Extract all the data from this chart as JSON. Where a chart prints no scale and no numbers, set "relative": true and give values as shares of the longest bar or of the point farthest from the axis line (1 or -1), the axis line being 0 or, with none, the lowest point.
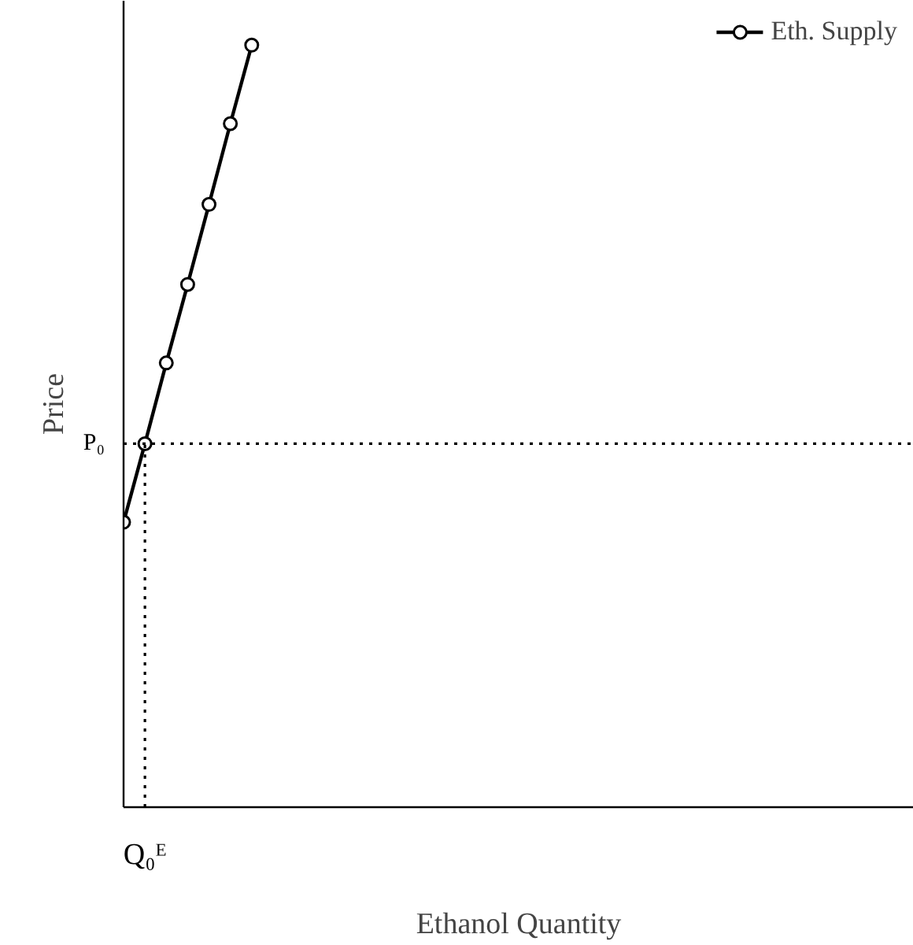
{
  "chart_data": {
    "type": "line",
    "relative": true,
    "xlabel": "Ethanol Quantity",
    "ylabel": "Price",
    "annotations": [
      "Q₀ᴱ"
    ],
    "categories": [
      null,
      null,
      null,
      null,
      null,
      null,
      null,
      null,
      null,
      null,
      null,
      null,
      null,
      null,
      null,
      null,
      null,
      null,
      null,
      null,
      null,
      null,
      null,
      null,
      null,
      null,
      null,
      null,
      null,
      null,
      null,
      null,
      null,
      null,
      null,
      null,
      null,
      null
    ],
    "series": [
      {
        "name": "Eth. Supply",
        "color": "#000000",
        "values": [
          0.374,
          0.477,
          0.583,
          0.686,
          0.791,
          0.897,
          1,
          null,
          null,
          null,
          null,
          null,
          null,
          null,
          null,
          null,
          null,
          null,
          null,
          null,
          null,
          null,
          null,
          null,
          null,
          null,
          null,
          null,
          null,
          null,
          null,
          null,
          null,
          null,
          null,
          null,
          null,
          null
        ]
      }
    ],
    "marker": "circle",
    "line_style": "solid",
    "legend": "top right",
    "ref_lines": [
      {
        "axis": "y",
        "value": 0.477,
        "label": "P₀",
        "line_style": "dotted",
        "color": "#000000"
      }
    ]
  }
}
